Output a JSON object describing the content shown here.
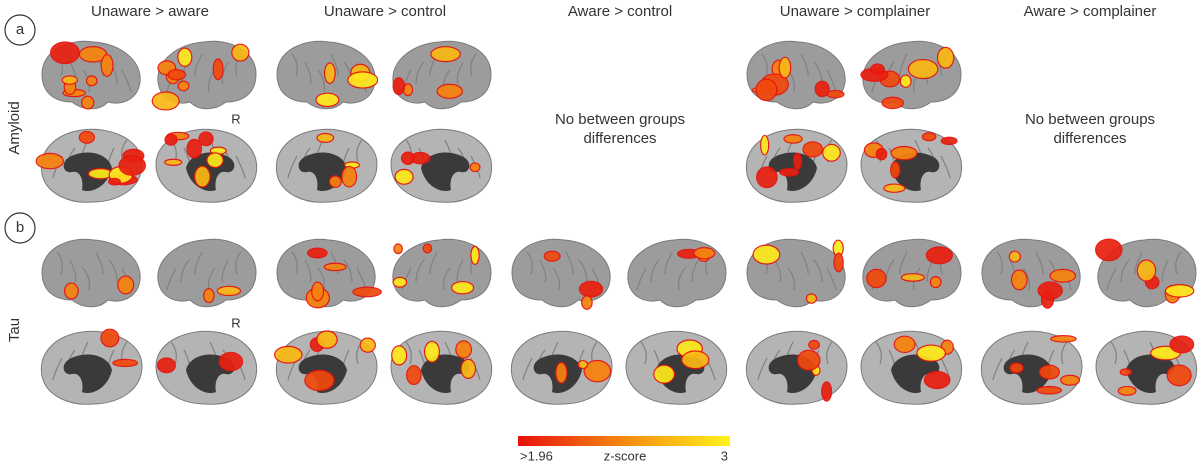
{
  "columns": [
    "Unaware  > aware",
    "Unaware  > control",
    "Aware  > control",
    "Unaware  > complainer",
    "Aware  > complainer"
  ],
  "panels": [
    {
      "label": "a",
      "row_label": "Amyloid",
      "side_label": "R",
      "notes": [
        "No between groups differences",
        "No between groups differences"
      ]
    },
    {
      "label": "b",
      "row_label": "Tau",
      "side_label": "R"
    }
  ],
  "colorbar": {
    "min": ">1.96",
    "title": "z-score",
    "max": "3"
  }
}
